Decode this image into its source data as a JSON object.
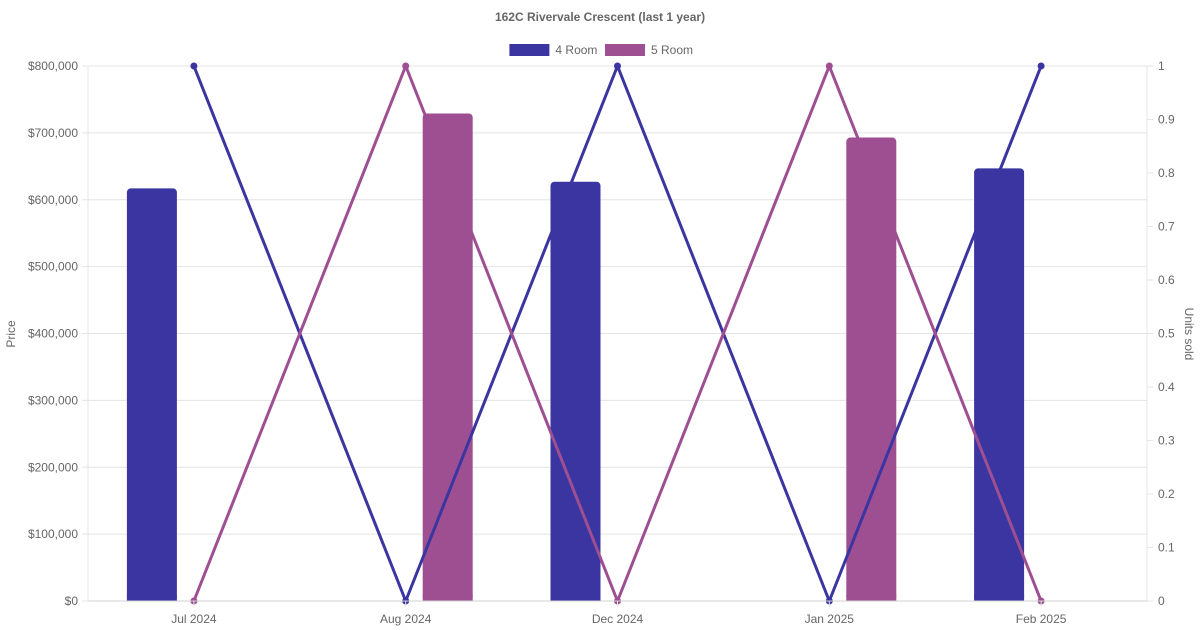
{
  "chart_data": {
    "type": "bar",
    "title": "162C Rivervale Crescent (last 1 year)",
    "categories": [
      "Jul 2024",
      "Aug 2024",
      "Dec 2024",
      "Jan 2025",
      "Feb 2025"
    ],
    "ylabel": "Price",
    "y2label": "Units sold",
    "ylim": [
      0,
      800000
    ],
    "y2lim": [
      0,
      1
    ],
    "y_ticks": [
      "$0",
      "$100,000",
      "$200,000",
      "$300,000",
      "$400,000",
      "$500,000",
      "$600,000",
      "$700,000",
      "$800,000"
    ],
    "y2_ticks": [
      "0",
      "0.1",
      "0.2",
      "0.3",
      "0.4",
      "0.5",
      "0.6",
      "0.7",
      "0.8",
      "0.9",
      "1"
    ],
    "legend_position": "top",
    "grid": true,
    "series": [
      {
        "name": "4 Room",
        "color": "#3a35a0",
        "bar_values": [
          617000,
          null,
          627000,
          null,
          647000
        ],
        "units_sold": [
          1,
          0,
          1,
          0,
          1
        ]
      },
      {
        "name": "5 Room",
        "color": "#9e4f92",
        "bar_values": [
          null,
          729000,
          null,
          693000,
          null
        ],
        "units_sold": [
          0,
          1,
          0,
          1,
          0
        ]
      }
    ]
  }
}
